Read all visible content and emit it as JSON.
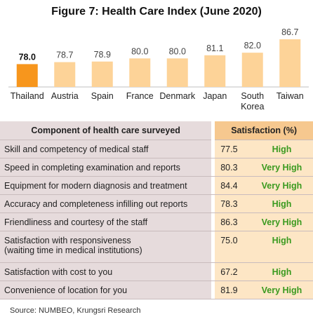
{
  "chart_data": {
    "type": "bar",
    "title": "Figure 7: Health Care Index (June 2020)",
    "categories": [
      "Thailand",
      "Austria",
      "Spain",
      "France",
      "Denmark",
      "Japan",
      "South Korea",
      "Taiwan"
    ],
    "category_lines": [
      [
        "Thailand"
      ],
      [
        "Austria"
      ],
      [
        "Spain"
      ],
      [
        "France"
      ],
      [
        "Denmark"
      ],
      [
        "Japan"
      ],
      [
        "South",
        "Korea"
      ],
      [
        "Taiwan"
      ]
    ],
    "values": [
      78.0,
      78.7,
      78.9,
      80.0,
      80.0,
      81.1,
      82.0,
      86.7
    ],
    "value_labels": [
      "78.0",
      "78.7",
      "78.9",
      "80.0",
      "80.0",
      "81.1",
      "82.0",
      "86.7"
    ],
    "highlight_index": 0,
    "colors": {
      "highlight": "#f7961d",
      "bar": "#fdd398",
      "highlight_label": "#111111",
      "label": "#444444"
    }
  },
  "table": {
    "header_component": "Component of health care surveyed",
    "header_satisfaction": "Satisfaction (%)",
    "rows": [
      {
        "component": "Skill and competency of medical staff",
        "value": "77.5",
        "level": "High"
      },
      {
        "component": "Speed in completing examination and reports",
        "value": "80.3",
        "level": "Very High"
      },
      {
        "component": "Equipment for modern diagnosis and treatment",
        "value": "84.4",
        "level": "Very High"
      },
      {
        "component": "Accuracy and completeness infilling out reports",
        "value": "78.3",
        "level": "High"
      },
      {
        "component": "Friendliness and courtesy of the staff",
        "value": "86.3",
        "level": "Very High"
      },
      {
        "component": "Satisfaction with responsiveness",
        "component_line2": "(waiting time in medical institutions)",
        "value": "75.0",
        "level": "High"
      },
      {
        "component": "Satisfaction with cost to you",
        "value": "67.2",
        "level": "High"
      },
      {
        "component": "Convenience of location for you",
        "value": "81.9",
        "level": "Very High"
      }
    ]
  },
  "source": "Source: NUMBEO, Krungsri Research"
}
